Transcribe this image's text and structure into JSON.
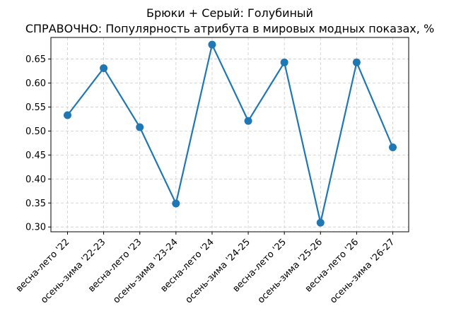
{
  "chart_data": {
    "type": "line",
    "title": "Брюки + Серый: Голубиный",
    "subtitle": "СПРАВОЧНО: Популярность атрибута в мировых модных показах, %",
    "xlabel": "",
    "ylabel": "",
    "categories": [
      "весна-лето '22",
      "осень-зима '22-23",
      "весна-лето '23",
      "осень-зима '23-24",
      "весна-лето '24",
      "осень-зима '24-25",
      "весна-лето '25",
      "осень-зима '25-26",
      "весна-лето '26",
      "осень-зима '26-27"
    ],
    "series": [
      {
        "values": [
          0.533,
          0.631,
          0.508,
          0.349,
          0.68,
          0.521,
          0.643,
          0.309,
          0.643,
          0.466
        ]
      }
    ],
    "ylim": [
      0.29,
      0.695
    ],
    "yticks": [
      0.3,
      0.35,
      0.4,
      0.45,
      0.5,
      0.55,
      0.6,
      0.65
    ],
    "ytick_labels": [
      "0.30",
      "0.35",
      "0.40",
      "0.45",
      "0.50",
      "0.55",
      "0.60",
      "0.65"
    ],
    "grid": true,
    "color": "#1f77b4"
  }
}
